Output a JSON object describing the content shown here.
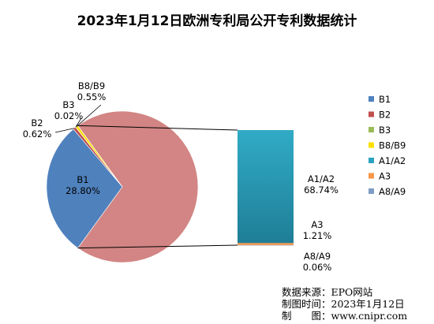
{
  "chart_data": {
    "type": "pie",
    "variant": "bar-of-pie",
    "title": "2023年1月12日欧洲专利局公开专利数据统计",
    "series": [
      {
        "name": "B1",
        "value": 28.8,
        "label": "28.80%",
        "color": "#4F81BD",
        "group": "pie"
      },
      {
        "name": "B2",
        "value": 0.62,
        "label": "0.62%",
        "color": "#C0504D",
        "group": "pie"
      },
      {
        "name": "B3",
        "value": 0.02,
        "label": "0.02%",
        "color": "#9BBB59",
        "group": "pie"
      },
      {
        "name": "B8/B9",
        "value": 0.55,
        "label": "0.55%",
        "color": "#FFE000",
        "group": "pie"
      },
      {
        "name": "A1/A2",
        "value": 68.74,
        "label": "68.74%",
        "color": "#2AA3BE",
        "group": "bar"
      },
      {
        "name": "A3",
        "value": 1.21,
        "label": "1.21%",
        "color": "#F79646",
        "group": "bar"
      },
      {
        "name": "A8/A9",
        "value": 0.06,
        "label": "0.06%",
        "color": "#7F9DC5",
        "group": "bar"
      }
    ],
    "combined_slice_color": "#D28584",
    "legend_position": "right"
  },
  "source_note": {
    "line1": "数据来源：EPO网站",
    "line2": "制图时间：2023年1月12日",
    "line3": "制　　图：www.cnipr.com"
  }
}
